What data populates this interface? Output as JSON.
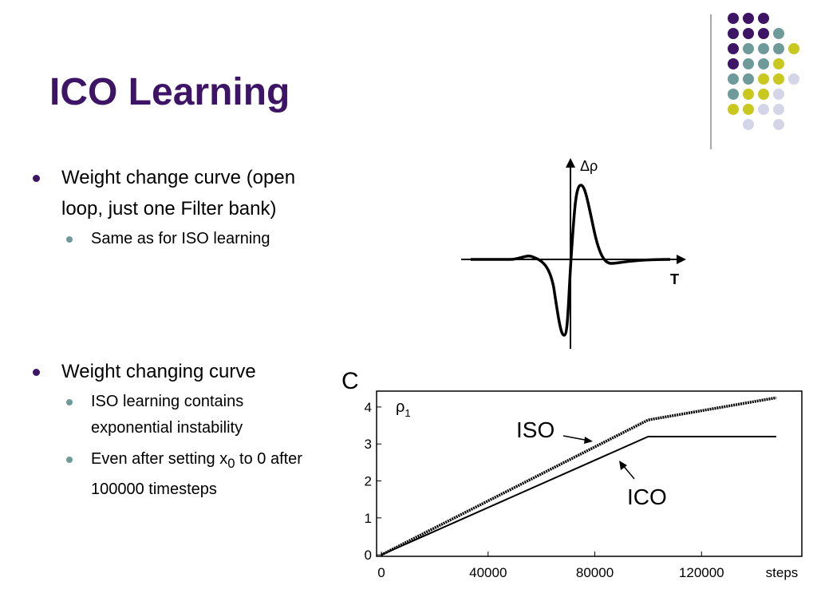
{
  "title": "ICO Learning",
  "bullets": [
    {
      "text": "Weight change curve (open loop, just one Filter bank)",
      "sub": [
        [
          "Same as for ISO learning"
        ]
      ]
    },
    {
      "text": "Weight changing curve",
      "sub": [
        [
          "ISO learning contains exponential instability"
        ],
        [
          "Even after setting x",
          "0",
          " to 0 after 100000 timesteps"
        ]
      ]
    }
  ],
  "figure_a": {
    "y_label": "Δρ",
    "x_label": "T"
  },
  "chart_data": {
    "type": "line",
    "panel_label": "C",
    "y_label": [
      "ρ",
      "1"
    ],
    "x_label": "steps",
    "x": [
      0,
      100000,
      148000
    ],
    "series": [
      {
        "name": "ISO",
        "color": "#000000",
        "values": [
          0,
          3.65,
          4.25
        ]
      },
      {
        "name": "ICO",
        "color": "#000000",
        "values": [
          0,
          3.2,
          3.2
        ]
      }
    ],
    "xlim": [
      -1800,
      157600
    ],
    "ylim": [
      -0.04,
      4.43
    ],
    "xticks": [
      0,
      40000,
      80000,
      120000
    ],
    "yticks": [
      0,
      1,
      2,
      3,
      4
    ]
  }
}
